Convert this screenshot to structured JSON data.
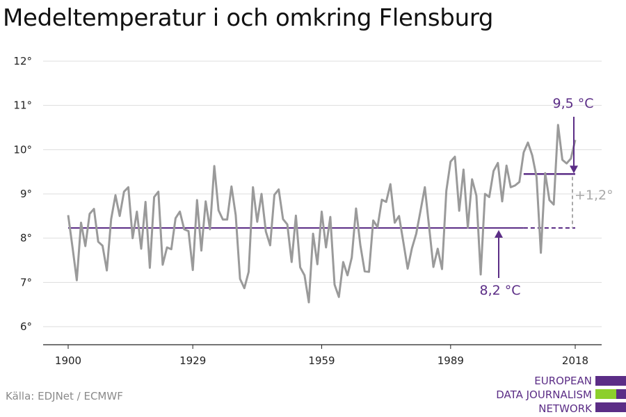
{
  "title": "Medeltemperatur i och omkring Flensburg",
  "source": "Källa: EDJNet / ECMWF",
  "logo": {
    "lines": [
      "EUROPEAN",
      "DATA JOURNALISM",
      "NETWORK"
    ]
  },
  "colors": {
    "series": "#9a9a9a",
    "accent": "#5b2d86",
    "diff": "#a8a8a8",
    "grid": "#dddddd",
    "axis": "#222222",
    "logo_green": "#8ccf2c"
  },
  "chart_data": {
    "type": "line",
    "title": "Medeltemperatur i och omkring Flensburg",
    "xlabel": "",
    "ylabel": "",
    "xlim": [
      1900,
      2018
    ],
    "ylim": [
      6,
      12
    ],
    "x_ticks": [
      1900,
      1929,
      1959,
      1989,
      2018
    ],
    "y_ticks": [
      6,
      7,
      8,
      9,
      10,
      11,
      12
    ],
    "y_tick_labels": [
      "6°",
      "7°",
      "8°",
      "9°",
      "10°",
      "11°",
      "12°"
    ],
    "grid": true,
    "series": [
      {
        "x_start": 1900,
        "values": [
          8.52,
          7.8,
          7.05,
          8.35,
          7.82,
          8.55,
          8.66,
          7.92,
          7.83,
          7.27,
          8.43,
          8.97,
          8.5,
          9.05,
          9.15,
          8.0,
          8.6,
          7.76,
          8.82,
          7.33,
          8.93,
          9.05,
          7.4,
          7.79,
          7.75,
          8.45,
          8.6,
          8.2,
          8.16,
          7.28,
          8.86,
          7.72,
          8.83,
          8.2,
          9.63,
          8.63,
          8.42,
          8.42,
          9.17,
          8.52,
          7.08,
          6.87,
          7.24,
          9.15,
          8.37,
          9.0,
          8.15,
          7.84,
          8.98,
          9.1,
          8.43,
          8.31,
          7.46,
          8.51,
          7.34,
          7.16,
          6.55,
          8.1,
          7.41,
          8.6,
          7.79,
          8.48,
          6.95,
          6.67,
          7.46,
          7.16,
          7.56,
          8.67,
          7.84,
          7.25,
          7.24,
          8.4,
          8.25,
          8.87,
          8.82,
          9.22,
          8.35,
          8.5,
          7.91,
          7.31,
          7.77,
          8.1,
          8.62,
          9.15,
          8.26,
          7.35,
          7.76,
          7.3,
          9.07,
          9.73,
          9.84,
          8.62,
          9.55,
          8.24,
          9.33,
          8.96,
          7.18,
          9.0,
          8.93,
          9.52,
          9.7,
          8.83,
          9.64,
          9.15,
          9.19,
          9.27,
          9.94,
          10.16,
          9.87,
          9.38,
          7.67,
          9.47,
          8.86,
          8.76,
          10.56,
          9.77,
          9.69,
          9.8,
          10.22
        ]
      }
    ],
    "annotations": [
      {
        "text": "9,5 °C",
        "value": 9.45,
        "from": 2006,
        "to": 2018
      },
      {
        "text": "8,2 °C",
        "value": 8.23,
        "from": 1900,
        "to": 2018
      },
      {
        "text": "+1,2°",
        "from_value": 8.23,
        "to_value": 9.45
      }
    ]
  }
}
